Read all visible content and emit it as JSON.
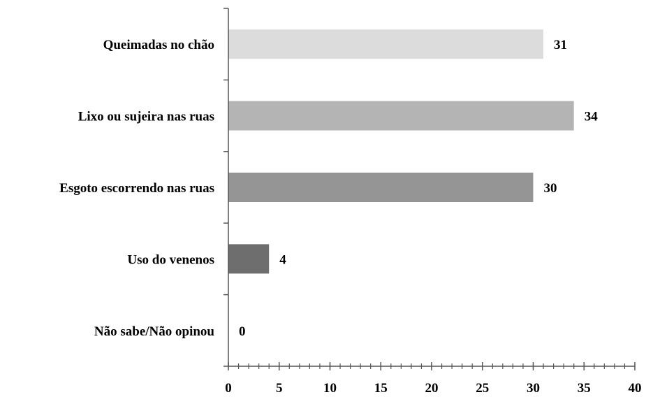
{
  "chart_data": {
    "type": "bar",
    "orientation": "horizontal",
    "categories": [
      "Queimadas no chão",
      "Lixo ou sujeira nas ruas",
      "Esgoto escorrendo nas ruas",
      "Uso do venenos",
      "Não sabe/Não opinou"
    ],
    "values": [
      31,
      34,
      30,
      4,
      0
    ],
    "data_labels": [
      "31",
      "34",
      "30",
      "4",
      "0"
    ],
    "bar_colors": [
      "#dcdcdc",
      "#b4b4b4",
      "#959595",
      "#6e6e6e",
      "#4a4a4a"
    ],
    "xlim": [
      0,
      40
    ],
    "x_ticks": [
      0,
      5,
      10,
      15,
      20,
      25,
      30,
      35,
      40
    ],
    "x_tick_labels": [
      "0",
      "5",
      "10",
      "15",
      "20",
      "25",
      "30",
      "35",
      "40"
    ],
    "x_minor_step": 1,
    "title": "",
    "xlabel": "",
    "ylabel": "",
    "grid": false,
    "legend": "none"
  }
}
